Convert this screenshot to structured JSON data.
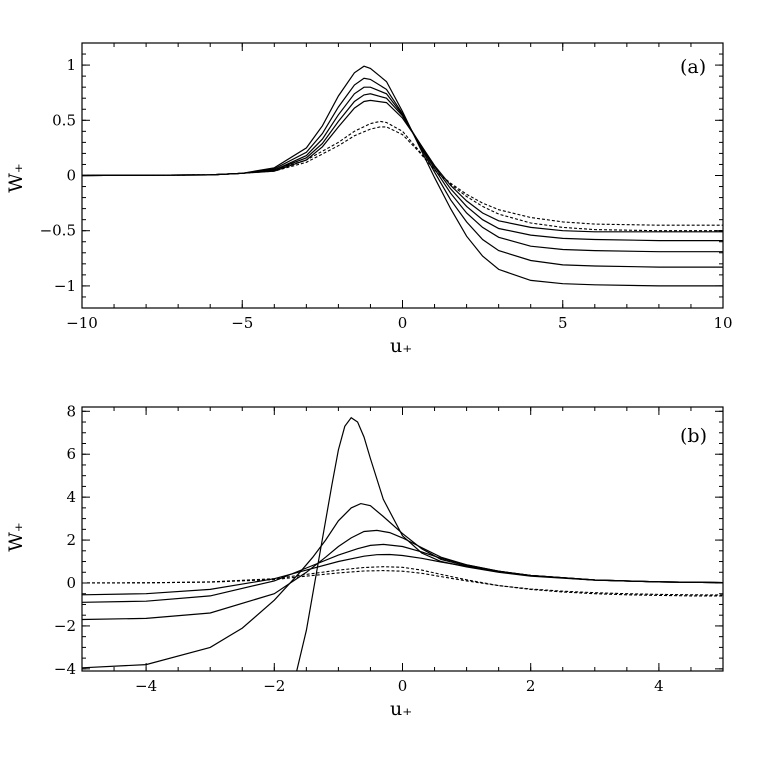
{
  "chart_data": [
    {
      "type": "line",
      "panel_label": "(a)",
      "xlabel": "u₊",
      "ylabel": "W₊",
      "xlim": [
        -10,
        10
      ],
      "ylim": [
        -1.2,
        1.2
      ],
      "xticks": [
        -10,
        -5,
        0,
        5,
        10
      ],
      "xtick_labels": [
        "−10",
        "−5",
        "0",
        "5",
        "10"
      ],
      "yticks": [
        -1,
        -0.5,
        0,
        0.5,
        1
      ],
      "ytick_labels": [
        "−1",
        "−0.5",
        "0",
        "0.5",
        "1"
      ],
      "grid": false,
      "series": [
        {
          "style": "solid",
          "x": [
            -10,
            -6,
            -5,
            -4,
            -3,
            -2.5,
            -2,
            -1.5,
            -1.2,
            -1,
            -0.5,
            0,
            0.5,
            1,
            1.5,
            2,
            2.5,
            3,
            4,
            5,
            6,
            8,
            10
          ],
          "y": [
            0,
            0.005,
            0.02,
            0.07,
            0.25,
            0.45,
            0.72,
            0.93,
            0.99,
            0.97,
            0.85,
            0.58,
            0.28,
            -0.02,
            -0.3,
            -0.55,
            -0.73,
            -0.85,
            -0.95,
            -0.98,
            -0.99,
            -1.0,
            -1.0
          ]
        },
        {
          "style": "solid",
          "x": [
            -10,
            -6,
            -5,
            -4,
            -3,
            -2.5,
            -2,
            -1.5,
            -1.2,
            -1,
            -0.5,
            0,
            0.5,
            1,
            1.5,
            2,
            2.5,
            3,
            4,
            5,
            6,
            8,
            10
          ],
          "y": [
            0,
            0.005,
            0.02,
            0.06,
            0.21,
            0.38,
            0.62,
            0.82,
            0.88,
            0.87,
            0.78,
            0.56,
            0.29,
            0.03,
            -0.22,
            -0.42,
            -0.58,
            -0.68,
            -0.77,
            -0.81,
            -0.82,
            -0.83,
            -0.83
          ]
        },
        {
          "style": "solid",
          "x": [
            -10,
            -6,
            -5,
            -4,
            -3,
            -2.5,
            -2,
            -1.5,
            -1.2,
            -1,
            -0.5,
            0,
            0.5,
            1,
            1.5,
            2,
            2.5,
            3,
            4,
            5,
            6,
            8,
            10
          ],
          "y": [
            0,
            0.005,
            0.02,
            0.05,
            0.18,
            0.33,
            0.55,
            0.74,
            0.8,
            0.8,
            0.74,
            0.55,
            0.3,
            0.06,
            -0.16,
            -0.34,
            -0.47,
            -0.56,
            -0.64,
            -0.67,
            -0.68,
            -0.69,
            -0.69
          ]
        },
        {
          "style": "solid",
          "x": [
            -10,
            -6,
            -5,
            -4,
            -3,
            -2.5,
            -2,
            -1.5,
            -1.2,
            -1,
            -0.5,
            0,
            0.5,
            1,
            1.5,
            2,
            2.5,
            3,
            4,
            5,
            6,
            8,
            10
          ],
          "y": [
            0,
            0.005,
            0.02,
            0.05,
            0.16,
            0.29,
            0.49,
            0.67,
            0.73,
            0.74,
            0.7,
            0.54,
            0.31,
            0.08,
            -0.12,
            -0.28,
            -0.4,
            -0.48,
            -0.54,
            -0.57,
            -0.58,
            -0.59,
            -0.59
          ]
        },
        {
          "style": "solid",
          "x": [
            -10,
            -6,
            -5,
            -4,
            -3,
            -2.5,
            -2,
            -1.5,
            -1.2,
            -1,
            -0.5,
            0,
            0.5,
            1,
            1.5,
            2,
            2.5,
            3,
            4,
            5,
            6,
            8,
            10
          ],
          "y": [
            0,
            0.005,
            0.02,
            0.04,
            0.14,
            0.26,
            0.44,
            0.61,
            0.67,
            0.68,
            0.66,
            0.52,
            0.31,
            0.09,
            -0.09,
            -0.23,
            -0.34,
            -0.41,
            -0.47,
            -0.5,
            -0.51,
            -0.51,
            -0.51
          ]
        },
        {
          "style": "dashed",
          "x": [
            -10,
            -6,
            -5,
            -4,
            -3,
            -2,
            -1.5,
            -1,
            -0.7,
            -0.5,
            0,
            0.5,
            1,
            1.5,
            2,
            2.5,
            3,
            4,
            5,
            6,
            8,
            10
          ],
          "y": [
            0,
            0.005,
            0.02,
            0.05,
            0.14,
            0.3,
            0.4,
            0.47,
            0.49,
            0.48,
            0.4,
            0.23,
            0.05,
            -0.08,
            -0.19,
            -0.28,
            -0.35,
            -0.43,
            -0.47,
            -0.49,
            -0.5,
            -0.5
          ]
        },
        {
          "style": "dashed",
          "x": [
            -10,
            -6,
            -5,
            -4,
            -3,
            -2,
            -1.5,
            -1,
            -0.7,
            -0.5,
            0,
            0.5,
            1,
            1.5,
            2,
            2.5,
            3,
            4,
            5,
            6,
            8,
            10
          ],
          "y": [
            0,
            0.005,
            0.02,
            0.04,
            0.12,
            0.27,
            0.36,
            0.42,
            0.44,
            0.44,
            0.37,
            0.22,
            0.05,
            -0.07,
            -0.17,
            -0.25,
            -0.31,
            -0.38,
            -0.42,
            -0.44,
            -0.45,
            -0.45
          ]
        }
      ]
    },
    {
      "type": "line",
      "panel_label": "(b)",
      "xlabel": "u₊",
      "ylabel": "W₊",
      "xlim": [
        -5,
        5
      ],
      "ylim": [
        -4.1,
        8.2
      ],
      "xticks": [
        -4,
        -2,
        0,
        2,
        4
      ],
      "xtick_labels": [
        "−4",
        "−2",
        "0",
        "2",
        "4"
      ],
      "yticks": [
        -4,
        -2,
        0,
        2,
        4,
        6,
        8
      ],
      "ytick_labels": [
        "−4",
        "−2",
        "0",
        "2",
        "4",
        "6",
        "8"
      ],
      "grid": false,
      "series": [
        {
          "style": "solid",
          "x": [
            -1.65,
            -1.5,
            -1.3,
            -1.1,
            -1.0,
            -0.9,
            -0.8,
            -0.7,
            -0.6,
            -0.5,
            -0.3,
            0,
            0.3,
            0.6,
            1.0,
            1.5,
            2,
            3,
            4,
            5
          ],
          "y": [
            -4.1,
            -2.2,
            1.2,
            4.6,
            6.2,
            7.3,
            7.7,
            7.5,
            6.8,
            5.8,
            3.9,
            2.2,
            1.4,
            1.0,
            0.75,
            0.5,
            0.32,
            0.13,
            0.05,
            0.02
          ]
        },
        {
          "style": "solid",
          "x": [
            -5,
            -4,
            -3,
            -2.5,
            -2,
            -1.6,
            -1.4,
            -1.2,
            -1.0,
            -0.8,
            -0.65,
            -0.5,
            -0.3,
            0,
            0.3,
            0.6,
            1.0,
            1.5,
            2,
            3,
            4,
            5
          ],
          "y": [
            -3.95,
            -3.8,
            -3.0,
            -2.1,
            -0.8,
            0.5,
            1.2,
            2.0,
            2.9,
            3.5,
            3.7,
            3.6,
            3.1,
            2.3,
            1.6,
            1.1,
            0.8,
            0.55,
            0.35,
            0.14,
            0.05,
            0.02
          ]
        },
        {
          "style": "solid",
          "x": [
            -5,
            -4,
            -3,
            -2,
            -1.5,
            -1.2,
            -1.0,
            -0.8,
            -0.6,
            -0.4,
            -0.2,
            0,
            0.3,
            0.6,
            1.0,
            1.5,
            2,
            3,
            4,
            5
          ],
          "y": [
            -1.7,
            -1.65,
            -1.4,
            -0.5,
            0.5,
            1.2,
            1.7,
            2.1,
            2.4,
            2.45,
            2.35,
            2.1,
            1.65,
            1.2,
            0.85,
            0.55,
            0.35,
            0.14,
            0.05,
            0.02
          ]
        },
        {
          "style": "solid",
          "x": [
            -5,
            -4,
            -3,
            -2,
            -1.5,
            -1.0,
            -0.7,
            -0.5,
            -0.3,
            0,
            0.3,
            0.6,
            1.0,
            1.5,
            2,
            3,
            4,
            5
          ],
          "y": [
            -0.9,
            -0.85,
            -0.6,
            0.1,
            0.7,
            1.3,
            1.6,
            1.75,
            1.8,
            1.7,
            1.45,
            1.15,
            0.85,
            0.55,
            0.35,
            0.14,
            0.05,
            0.02
          ]
        },
        {
          "style": "solid",
          "x": [
            -5,
            -4,
            -3,
            -2,
            -1.5,
            -1.0,
            -0.6,
            -0.4,
            -0.2,
            0,
            0.3,
            0.6,
            1.0,
            1.5,
            2,
            3,
            4,
            5
          ],
          "y": [
            -0.55,
            -0.5,
            -0.3,
            0.2,
            0.6,
            1.0,
            1.25,
            1.32,
            1.33,
            1.28,
            1.15,
            0.98,
            0.78,
            0.52,
            0.35,
            0.14,
            0.05,
            0.02
          ]
        },
        {
          "style": "dashed",
          "x": [
            -5,
            -4,
            -3,
            -2,
            -1.5,
            -1.0,
            -0.6,
            -0.3,
            0,
            0.3,
            0.6,
            1.0,
            1.5,
            2,
            2.5,
            3,
            3.5,
            4,
            4.5,
            5
          ],
          "y": [
            0,
            0.01,
            0.05,
            0.2,
            0.4,
            0.6,
            0.72,
            0.76,
            0.73,
            0.6,
            0.4,
            0.15,
            -0.12,
            -0.3,
            -0.42,
            -0.5,
            -0.55,
            -0.58,
            -0.6,
            -0.6
          ]
        },
        {
          "style": "dashed",
          "x": [
            -5,
            -4,
            -3,
            -2,
            -1.5,
            -1.0,
            -0.6,
            -0.3,
            0,
            0.3,
            0.6,
            1.0,
            1.5,
            2,
            2.5,
            3,
            3.5,
            4,
            4.5,
            5
          ],
          "y": [
            0,
            0.01,
            0.04,
            0.16,
            0.32,
            0.47,
            0.56,
            0.58,
            0.55,
            0.45,
            0.3,
            0.1,
            -0.12,
            -0.28,
            -0.38,
            -0.45,
            -0.5,
            -0.53,
            -0.55,
            -0.56
          ]
        }
      ]
    }
  ]
}
